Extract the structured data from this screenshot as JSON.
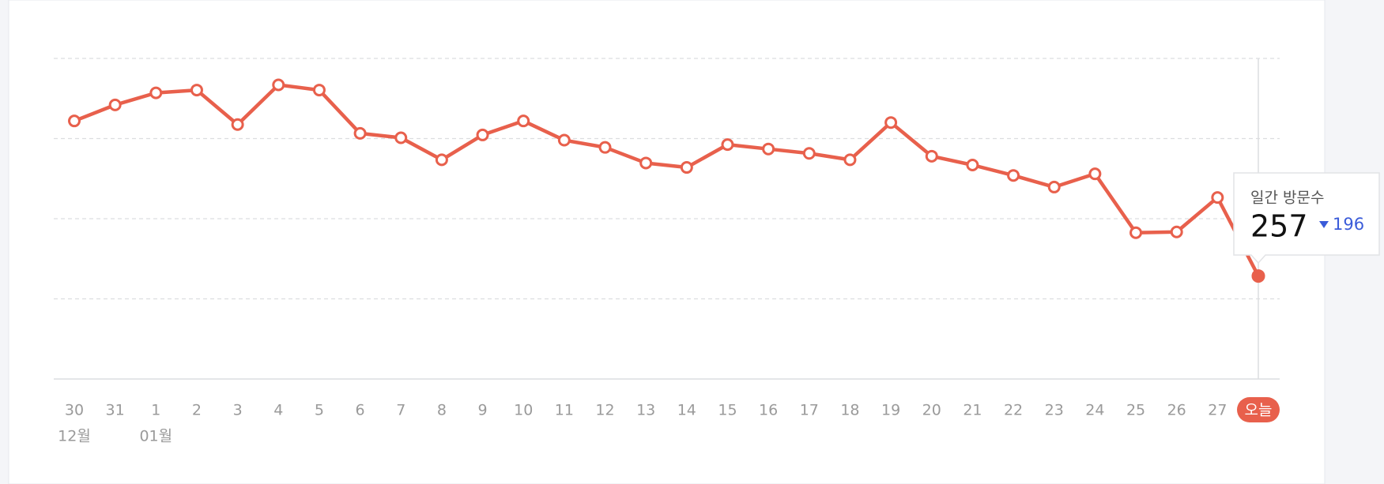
{
  "chart_data": {
    "type": "line",
    "categories": [
      "30",
      "31",
      "1",
      "2",
      "3",
      "4",
      "5",
      "6",
      "7",
      "8",
      "9",
      "10",
      "11",
      "12",
      "13",
      "14",
      "15",
      "16",
      "17",
      "18",
      "19",
      "20",
      "21",
      "22",
      "23",
      "24",
      "25",
      "26",
      "27",
      "오늘"
    ],
    "month_labels": [
      "12월",
      null,
      "01월",
      null,
      null,
      null,
      null,
      null,
      null,
      null,
      null,
      null,
      null,
      null,
      null,
      null,
      null,
      null,
      null,
      null,
      null,
      null,
      null,
      null,
      null,
      null,
      null,
      null,
      null,
      null
    ],
    "values": [
      644,
      684,
      714,
      721,
      635,
      734,
      721,
      613,
      602,
      547,
      609,
      644,
      596,
      578,
      539,
      528,
      585,
      574,
      563,
      547,
      640,
      556,
      534,
      508,
      479,
      512,
      365,
      367,
      453,
      257
    ],
    "color": "#e8604c",
    "ylim": [
      0,
      800
    ],
    "yticks": [
      200,
      400,
      600,
      800
    ],
    "grid": true,
    "tooltip": {
      "label": "일간 방문수",
      "change": 196,
      "change_direction": "down"
    }
  }
}
